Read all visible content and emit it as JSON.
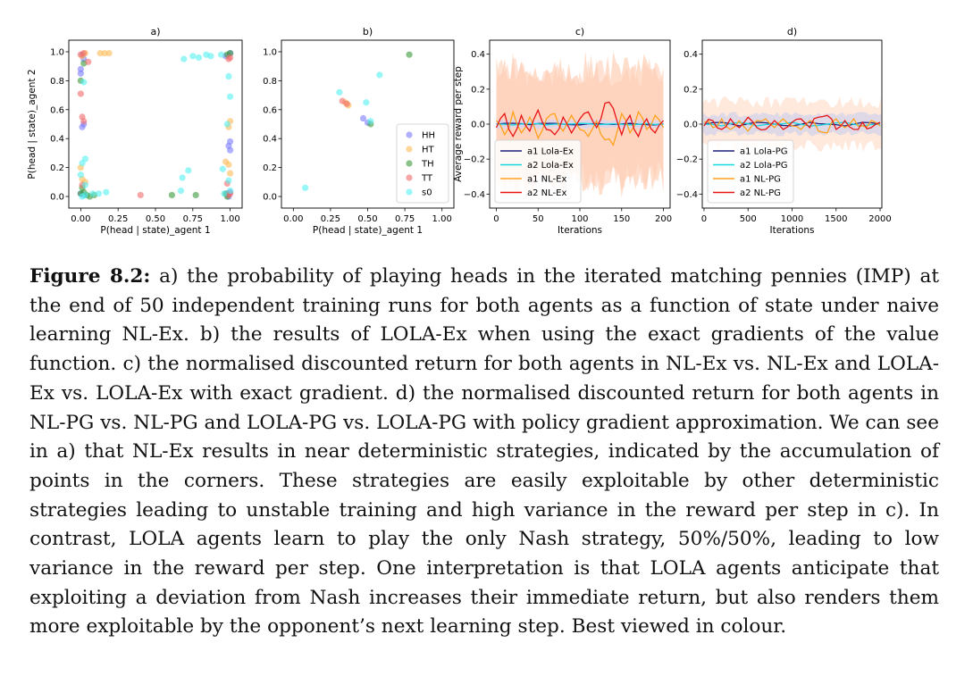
{
  "chart_data": [
    {
      "type": "scatter",
      "title": "a)",
      "xlabel": "P(head | state)_agent 1",
      "ylabel": "P(head | state)_agent 2",
      "xlim": [
        -0.08,
        1.08
      ],
      "ylim": [
        -0.08,
        1.08
      ],
      "xticks": [
        "0.00",
        "0.25",
        "0.50",
        "0.75",
        "1.00"
      ],
      "xtick_values": [
        0,
        0.25,
        0.5,
        0.75,
        1.0
      ],
      "yticks": [
        "0.0",
        "0.2",
        "0.4",
        "0.6",
        "0.8",
        "1.0"
      ],
      "ytick_values": [
        0,
        0.2,
        0.4,
        0.6,
        0.8,
        1.0
      ],
      "series": [
        {
          "name": "HH",
          "color": "#7b7bff",
          "points": [
            [
              0.01,
              0.98
            ],
            [
              0.02,
              0.95
            ],
            [
              0.0,
              0.88
            ],
            [
              0.0,
              0.85
            ],
            [
              0.02,
              0.5
            ],
            [
              0.01,
              0.48
            ],
            [
              1.0,
              0.38
            ],
            [
              0.99,
              0.35
            ],
            [
              1.0,
              0.32
            ],
            [
              0.0,
              0.02
            ],
            [
              0.02,
              0.01
            ],
            [
              0.98,
              0.02
            ],
            [
              1.0,
              0.03
            ],
            [
              0.99,
              0.0
            ],
            [
              0.97,
              0.97
            ],
            [
              1.0,
              0.99
            ]
          ]
        },
        {
          "name": "HT",
          "color": "#ffbb55",
          "points": [
            [
              0.13,
              0.99
            ],
            [
              0.16,
              0.99
            ],
            [
              0.19,
              0.99
            ],
            [
              0.99,
              0.48
            ],
            [
              1.0,
              0.52
            ],
            [
              0.97,
              0.24
            ],
            [
              0.99,
              0.22
            ],
            [
              0.01,
              0.12
            ],
            [
              0.03,
              0.1
            ],
            [
              1.0,
              0.16
            ],
            [
              0.0,
              0.2
            ],
            [
              0.01,
              0.97
            ],
            [
              0.03,
              0.99
            ]
          ]
        },
        {
          "name": "TH",
          "color": "#3a9a3a",
          "points": [
            [
              0.0,
              0.02
            ],
            [
              0.02,
              0.03
            ],
            [
              0.04,
              0.01
            ],
            [
              0.06,
              0.0
            ],
            [
              0.09,
              0.01
            ],
            [
              0.61,
              0.01
            ],
            [
              0.77,
              0.01
            ],
            [
              0.97,
              0.02
            ],
            [
              0.98,
              0.0
            ],
            [
              1.0,
              0.99
            ],
            [
              0.02,
              0.92
            ],
            [
              0.0,
              0.8
            ],
            [
              0.98,
              0.98
            ],
            [
              0.01,
              0.06
            ]
          ]
        },
        {
          "name": "TT",
          "color": "#f06a6a",
          "points": [
            [
              0.0,
              0.71
            ],
            [
              0.01,
              0.55
            ],
            [
              0.02,
              0.52
            ],
            [
              0.0,
              0.98
            ],
            [
              0.02,
              0.99
            ],
            [
              0.99,
              0.95
            ],
            [
              1.0,
              0.96
            ],
            [
              1.0,
              0.02
            ],
            [
              0.4,
              0.01
            ],
            [
              0.05,
              0.93
            ],
            [
              0.01,
              0.08
            ],
            [
              0.98,
              0.09
            ],
            [
              0.99,
              0.01
            ]
          ]
        },
        {
          "name": "s0",
          "color": "#55f0f0",
          "points": [
            [
              0.01,
              0.0
            ],
            [
              0.03,
              0.01
            ],
            [
              0.08,
              0.02
            ],
            [
              0.12,
              0.02
            ],
            [
              0.17,
              0.03
            ],
            [
              0.0,
              0.15
            ],
            [
              0.01,
              0.23
            ],
            [
              0.03,
              0.26
            ],
            [
              0.67,
              0.04
            ],
            [
              0.68,
              0.13
            ],
            [
              0.72,
              0.18
            ],
            [
              0.75,
              0.97
            ],
            [
              0.79,
              0.96
            ],
            [
              0.84,
              0.98
            ],
            [
              0.87,
              0.97
            ],
            [
              0.69,
              0.95
            ],
            [
              0.94,
              0.98
            ],
            [
              0.95,
              0.19
            ],
            [
              0.99,
              0.11
            ],
            [
              1.0,
              0.69
            ],
            [
              0.98,
              0.5
            ],
            [
              1.0,
              0.04
            ],
            [
              0.96,
              0.02
            ],
            [
              0.03,
              0.08
            ],
            [
              0.02,
              0.79
            ],
            [
              0.99,
              0.83
            ]
          ]
        }
      ]
    },
    {
      "type": "scatter",
      "title": "b)",
      "xlabel": "P(head | state)_agent 1",
      "ylabel": "",
      "xlim": [
        -0.08,
        1.08
      ],
      "ylim": [
        -0.08,
        1.08
      ],
      "xticks": [
        "0.00",
        "0.25",
        "0.50",
        "0.75",
        "1.00"
      ],
      "xtick_values": [
        0,
        0.25,
        0.5,
        0.75,
        1.0
      ],
      "yticks": [
        "0.0",
        "0.2",
        "0.4",
        "0.6",
        "0.8",
        "1.0"
      ],
      "ytick_values": [
        0,
        0.2,
        0.4,
        0.6,
        0.8,
        1.0
      ],
      "legend_position": "bottom-right",
      "series": [
        {
          "name": "HH",
          "color": "#7b7bff",
          "points": [
            [
              0.47,
              0.54
            ],
            [
              0.5,
              0.51
            ]
          ]
        },
        {
          "name": "HT",
          "color": "#ffbb55",
          "points": [
            [
              0.35,
              0.65
            ],
            [
              0.37,
              0.63
            ]
          ]
        },
        {
          "name": "TH",
          "color": "#3a9a3a",
          "points": [
            [
              0.78,
              0.98
            ],
            [
              0.52,
              0.5
            ]
          ]
        },
        {
          "name": "TT",
          "color": "#f06a6a",
          "points": [
            [
              0.33,
              0.66
            ],
            [
              0.36,
              0.64
            ]
          ]
        },
        {
          "name": "s0",
          "color": "#55f0f0",
          "points": [
            [
              0.08,
              0.06
            ],
            [
              0.31,
              0.72
            ],
            [
              0.49,
              0.65
            ],
            [
              0.58,
              0.84
            ],
            [
              0.52,
              0.52
            ]
          ]
        }
      ]
    },
    {
      "type": "line",
      "title": "c)",
      "xlabel": "Iterations",
      "ylabel": "Average reward per step",
      "xlim": [
        -8,
        208
      ],
      "ylim": [
        -0.48,
        0.48
      ],
      "xticks": [
        "0",
        "50",
        "100",
        "150",
        "200"
      ],
      "xtick_values": [
        0,
        50,
        100,
        150,
        200
      ],
      "yticks": [
        "−0.4",
        "−0.2",
        "0.0",
        "0.2",
        "0.4"
      ],
      "ytick_values": [
        -0.4,
        -0.2,
        0,
        0.2,
        0.4
      ],
      "legend_position": "lower-left",
      "series": [
        {
          "name": "a1 Lola-Ex",
          "color": "#1f1f7a",
          "x": [
            0,
            20,
            40,
            60,
            80,
            100,
            120,
            140,
            160,
            180,
            200
          ],
          "values": [
            0,
            0.005,
            -0.003,
            0.004,
            0,
            -0.004,
            0.003,
            -0.002,
            0.004,
            -0.003,
            0.001
          ]
        },
        {
          "name": "a2 Lola-Ex",
          "color": "#14d8e0",
          "x": [
            0,
            20,
            40,
            60,
            80,
            100,
            120,
            140,
            160,
            180,
            200
          ],
          "values": [
            0,
            -0.005,
            0.003,
            -0.004,
            0,
            0.004,
            -0.003,
            0.002,
            -0.004,
            0.003,
            -0.001
          ]
        },
        {
          "name": "a1 NL-Ex",
          "color": "#ffa21c",
          "x": [
            0,
            10,
            20,
            30,
            40,
            50,
            60,
            70,
            80,
            90,
            100,
            110,
            120,
            130,
            140,
            150,
            160,
            170,
            180,
            190,
            200
          ],
          "values": [
            0.02,
            -0.06,
            0.07,
            -0.05,
            0.04,
            -0.08,
            0.03,
            0.06,
            -0.04,
            0.05,
            -0.03,
            -0.07,
            0.02,
            -0.09,
            -0.12,
            0.06,
            -0.05,
            0.07,
            -0.03,
            0.05,
            -0.02
          ]
        },
        {
          "name": "a2 NL-Ex",
          "color": "#e81414",
          "x": [
            0,
            10,
            20,
            30,
            40,
            50,
            60,
            70,
            80,
            90,
            100,
            110,
            120,
            130,
            140,
            150,
            160,
            170,
            180,
            190,
            200
          ],
          "values": [
            -0.02,
            0.06,
            -0.07,
            0.05,
            -0.04,
            0.08,
            -0.03,
            -0.06,
            0.04,
            -0.05,
            0.03,
            0.07,
            -0.02,
            0.12,
            0.09,
            -0.06,
            0.05,
            -0.07,
            0.03,
            -0.05,
            0.02
          ]
        }
      ],
      "bands": [
        {
          "series": "a1 NL-Ex",
          "color": "#ffc6a8",
          "half_width": 0.42
        },
        {
          "series": "a2 NL-Ex",
          "color": "#ffcfb8",
          "half_width": 0.38
        },
        {
          "series": "a1 Lola-Ex",
          "color": "#c9d3ff",
          "half_width": 0.03
        }
      ]
    },
    {
      "type": "line",
      "title": "d)",
      "xlabel": "Iterations",
      "ylabel": "",
      "xlim": [
        -20,
        2020
      ],
      "ylim": [
        -0.48,
        0.48
      ],
      "xticks": [
        "0",
        "500",
        "1000",
        "1500",
        "2000"
      ],
      "xtick_values": [
        0,
        500,
        1000,
        1500,
        2000
      ],
      "yticks": [
        "−0.4",
        "−0.2",
        "0.0",
        "0.2",
        "0.4"
      ],
      "ytick_values": [
        -0.4,
        -0.2,
        0,
        0.2,
        0.4
      ],
      "legend_position": "lower-left",
      "series": [
        {
          "name": "a1 Lola-PG",
          "color": "#1f1f7a",
          "x": [
            0,
            200,
            400,
            600,
            800,
            1000,
            1200,
            1400,
            1600,
            1800,
            2000
          ],
          "values": [
            0,
            0.01,
            -0.01,
            0.01,
            0,
            -0.01,
            0.01,
            0,
            -0.01,
            0.01,
            0
          ]
        },
        {
          "name": "a2 Lola-PG",
          "color": "#14d8e0",
          "x": [
            0,
            200,
            400,
            600,
            800,
            1000,
            1200,
            1400,
            1600,
            1800,
            2000
          ],
          "values": [
            0,
            -0.01,
            0.01,
            -0.01,
            0,
            0.01,
            -0.01,
            0,
            0.01,
            -0.01,
            0
          ]
        },
        {
          "name": "a1 NL-PG",
          "color": "#ffa21c",
          "x": [
            0,
            100,
            200,
            300,
            400,
            500,
            600,
            700,
            800,
            900,
            1000,
            1100,
            1200,
            1300,
            1400,
            1500,
            1600,
            1700,
            1800,
            1900,
            2000
          ],
          "values": [
            0.01,
            -0.02,
            0.03,
            -0.03,
            0.02,
            -0.04,
            0.02,
            0.03,
            -0.02,
            0.03,
            -0.01,
            -0.03,
            0.02,
            -0.04,
            -0.05,
            0.03,
            -0.02,
            0.03,
            -0.01,
            0.02,
            -0.01
          ]
        },
        {
          "name": "a2 NL-PG",
          "color": "#e81414",
          "x": [
            0,
            100,
            200,
            300,
            400,
            500,
            600,
            700,
            800,
            900,
            1000,
            1100,
            1200,
            1300,
            1400,
            1500,
            1600,
            1700,
            1800,
            1900,
            2000
          ],
          "values": [
            -0.01,
            0.02,
            -0.03,
            0.03,
            -0.02,
            0.04,
            -0.02,
            -0.03,
            0.02,
            -0.03,
            0.01,
            0.03,
            -0.02,
            0.04,
            0.05,
            -0.03,
            0.02,
            -0.03,
            0.01,
            -0.02,
            0.01
          ]
        }
      ],
      "bands": [
        {
          "series": "a2 NL-PG",
          "color": "#ffd9c4",
          "half_width": 0.16
        },
        {
          "series": "a1 Lola-PG",
          "color": "#c9cfee",
          "half_width": 0.07
        }
      ]
    }
  ],
  "caption": {
    "label": "Figure 8.2:",
    "text": " a) the probability of playing heads in the iterated matching pennies (IMP) at the end of 50 independent training runs for both agents as a function of state under naive learning NL-Ex.  b) the results of LOLA-Ex when using the exact gradients of the value function.  c) the normalised discounted return for both agents in NL-Ex vs. NL-Ex and LOLA-Ex vs. LOLA-Ex with exact gradient.  d) the normalised discounted return for both agents in NL-PG vs. NL-PG and LOLA-PG vs. LOLA-PG with policy gradient approximation.  We can see in a) that NL-Ex results in near deterministic strategies, indicated by the accumulation of points in the corners. These strategies are easily exploitable by other deterministic strategies leading to unstable training and high variance in the reward per step in c). In contrast, LOLA agents learn to play the only Nash strategy, 50%/50%, leading to low variance in the reward per step. One interpretation is that LOLA agents anticipate that exploiting a deviation from Nash increases their immediate return, but also renders them more exploitable by the opponent’s next learning step. Best viewed in colour."
  }
}
